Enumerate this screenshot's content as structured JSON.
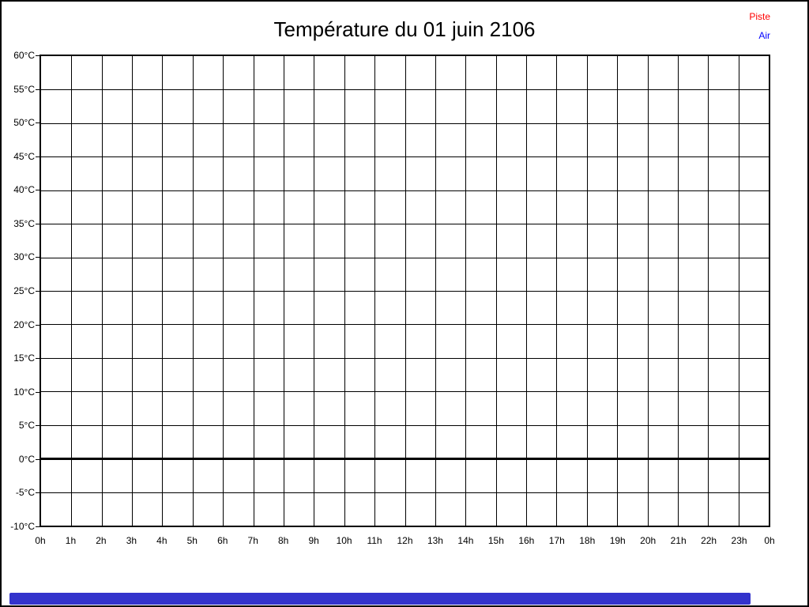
{
  "header": {
    "title": "Température du 01 juin 2106"
  },
  "legend": {
    "items": [
      {
        "label": "Piste",
        "color": "#ff0000"
      },
      {
        "label": "Air",
        "color": "#0000ff"
      }
    ]
  },
  "progress_bar": {
    "color": "#3333cc",
    "fraction": 0.934
  },
  "chart_data": {
    "type": "line",
    "title": "Température du 01 juin 2106",
    "xlabel": "",
    "ylabel": "",
    "x_tick_labels": [
      "0h",
      "1h",
      "2h",
      "3h",
      "4h",
      "5h",
      "6h",
      "7h",
      "8h",
      "9h",
      "10h",
      "11h",
      "12h",
      "13h",
      "14h",
      "15h",
      "16h",
      "17h",
      "18h",
      "19h",
      "20h",
      "21h",
      "22h",
      "23h",
      "0h"
    ],
    "y_tick_labels": [
      "60°C",
      "55°C",
      "50°C",
      "45°C",
      "40°C",
      "35°C",
      "30°C",
      "25°C",
      "20°C",
      "15°C",
      "10°C",
      "5°C",
      "0°C",
      "-5°C",
      "-10°C"
    ],
    "ylim": [
      -10,
      60
    ],
    "y_step": 5,
    "grid": true,
    "legend_position": "top-right",
    "series": [
      {
        "name": "Piste",
        "color": "#ff0000",
        "values": []
      },
      {
        "name": "Air",
        "color": "#0000ff",
        "values": []
      }
    ],
    "baseline": {
      "value": 0,
      "color": "#000000",
      "thickness_px": 3
    }
  }
}
